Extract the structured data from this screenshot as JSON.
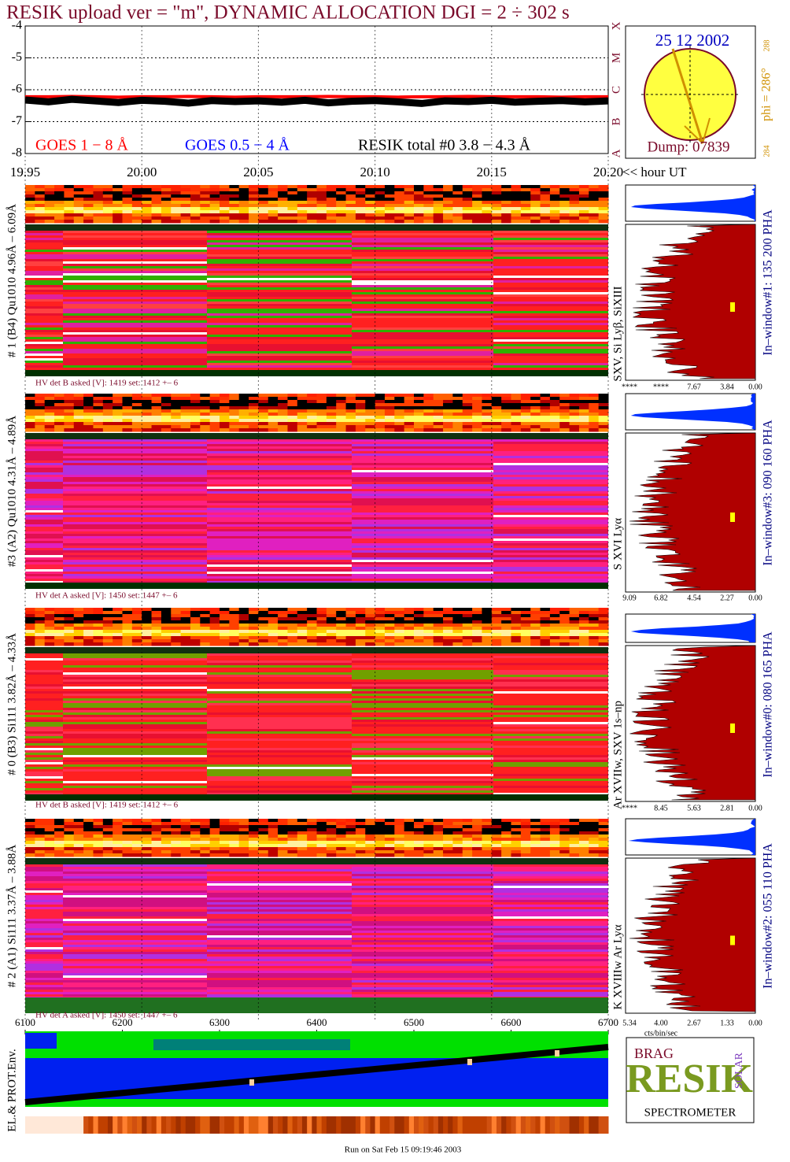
{
  "chart_data": [
    {
      "type": "line",
      "title": "RESIK upload ver = \"m\", DYNAMIC ALLOCATION  DGI =   2 ÷ 302 s",
      "x_label": "<< hour UT",
      "x": [
        19.95,
        19.96,
        19.97,
        19.98,
        19.99,
        20.0,
        20.01,
        20.02,
        20.03,
        20.04,
        20.05,
        20.06,
        20.07,
        20.08,
        20.09,
        20.1,
        20.11,
        20.12,
        20.13,
        20.14,
        20.15,
        20.16,
        20.17,
        20.18,
        20.19,
        20.2
      ],
      "series": [
        {
          "name": "GOES 1 − 8 Å",
          "color": "#ff0000",
          "values": [
            -6.22,
            -6.22,
            -6.21,
            -6.22,
            -6.23,
            -6.22,
            -6.22,
            -6.21,
            -6.22,
            -6.23,
            -6.22,
            -6.22,
            -6.22,
            -6.21,
            -6.22,
            -6.22,
            -6.23,
            -6.22,
            -6.22,
            -6.21,
            -6.22,
            -6.22,
            -6.22,
            -6.23,
            -6.22,
            -6.22
          ]
        },
        {
          "name": "GOES 0.5 − 4 Å",
          "color": "#0000ff",
          "values": [
            null,
            null,
            null,
            null,
            null,
            null,
            null,
            null,
            null,
            null,
            null,
            null,
            null,
            null,
            null,
            null,
            null,
            null,
            null,
            null,
            null,
            null,
            null,
            null,
            null,
            null
          ]
        },
        {
          "name": "RESIK total #0  3.8 − 4.3 Å",
          "color": "#000000",
          "values": [
            -6.32,
            -6.38,
            -6.3,
            -6.35,
            -6.4,
            -6.33,
            -6.36,
            -6.42,
            -6.34,
            -6.37,
            -6.35,
            -6.39,
            -6.33,
            -6.41,
            -6.36,
            -6.34,
            -6.38,
            -6.43,
            -6.35,
            -6.37,
            -6.33,
            -6.39,
            -6.36,
            -6.34,
            -6.38,
            -6.35
          ]
        }
      ],
      "xlim": [
        19.95,
        20.2
      ],
      "xticks": [
        19.95,
        {
          "value": 20,
          "label": "20.00"
        },
        20.05,
        {
          "value": 20.1,
          "label": "20.10"
        },
        20.15,
        {
          "value": 20.2,
          "label": "20.20"
        }
      ],
      "ylim": [
        -8,
        -4
      ],
      "yticks": [
        -4,
        -5,
        -6,
        -7,
        -8
      ],
      "y2lim": [
        -8,
        -4
      ],
      "y2ticks": [
        {
          "value": -8,
          "label": "A"
        },
        {
          "value": -7,
          "label": "B"
        },
        {
          "value": -6,
          "label": "C"
        },
        {
          "value": -5,
          "label": "M"
        },
        {
          "value": -4,
          "label": "X"
        }
      ],
      "grid": true
    },
    {
      "type": "strip",
      "y_label": "EL.& PROT.Env.",
      "xlim": [
        6100,
        6700
      ],
      "xticks": [
        6100,
        6200,
        6300,
        6400,
        6500,
        6600,
        6700
      ]
    }
  ],
  "sun": {
    "date": "25 12 2002",
    "dump": "Dump: 07839",
    "phi": "phi = 286°",
    "phi_max": "288",
    "phi_min": "284"
  },
  "panels": [
    {
      "label": "# 1 (B4) Qu1010 4.96Å – 6.09Å",
      "hv": "HV det B asked [V]:  1419 set:  1412 +–   6",
      "lines": "SXV, Si Lyβ, SiXIII",
      "window": "In–window#1:  135 200 PHA",
      "hist_ticks": [
        "****",
        "****",
        "7.67",
        "3.84",
        "0.00"
      ]
    },
    {
      "label": "#3 (A2) Qu1010  4.31Å – 4.89Å",
      "hv": "HV det A asked [V]:  1450 set:  1447 +–   6",
      "lines": "S XVI Lyα",
      "window": "In–window#3:  090 160 PHA",
      "hist_ticks": [
        "9.09",
        "6.82",
        "4.54",
        "2.27",
        "0.00"
      ]
    },
    {
      "label": "# 0 (B3) Si111  3.82Å – 4.33Å",
      "hv": "HV det B asked [V]:  1419 set:  1412 +–   6",
      "lines": "Ar XVIIw, SXV 1s–np",
      "window": "In–window#0:  080 165 PHA",
      "hist_ticks": [
        "****",
        "8.45",
        "5.63",
        "2.81",
        "0.00"
      ]
    },
    {
      "label": "# 2 (A1) Si111  3.37Å – 3.88Å",
      "hv": "HV det A asked [V]:  1450 set:  1447 +–   6",
      "lines": "K XVIIIw  Ar Lyα",
      "window": "In–window#2:  055 110 PHA",
      "hist_ticks": [
        "5.34",
        "4.00",
        "2.67",
        "1.33",
        "0.00"
      ]
    }
  ],
  "hist_axis_label": "cts/bin/sec",
  "logo": {
    "top": "BRAG",
    "name": "RESIK",
    "side": "SOLAR",
    "bottom": "SPECTROMETER"
  },
  "footer": "Run on Sat Feb 15 09:19:46 2003"
}
